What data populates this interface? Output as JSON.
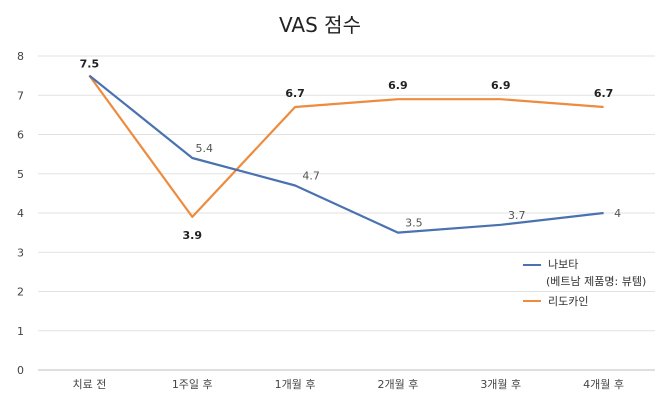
{
  "chart_data": {
    "type": "line",
    "title": "VAS 점수",
    "categories": [
      "치료 전",
      "1주일 후",
      "1개월 후",
      "2개월 후",
      "3개월 후",
      "4개월 후"
    ],
    "ylim": [
      0,
      8
    ],
    "yticks": [
      0,
      1,
      2,
      3,
      4,
      5,
      6,
      7,
      8
    ],
    "grid": true,
    "legend_position": "right",
    "series": [
      {
        "name": "나보타",
        "name_line2": "(베트남 제품명: 뷰템)",
        "color": "#4a72b0",
        "values": [
          7.5,
          5.4,
          4.7,
          3.5,
          3.7,
          4
        ]
      },
      {
        "name": "리도카인",
        "color": "#ed8b3e",
        "values": [
          7.5,
          3.9,
          6.7,
          6.9,
          6.9,
          6.7
        ]
      }
    ]
  }
}
